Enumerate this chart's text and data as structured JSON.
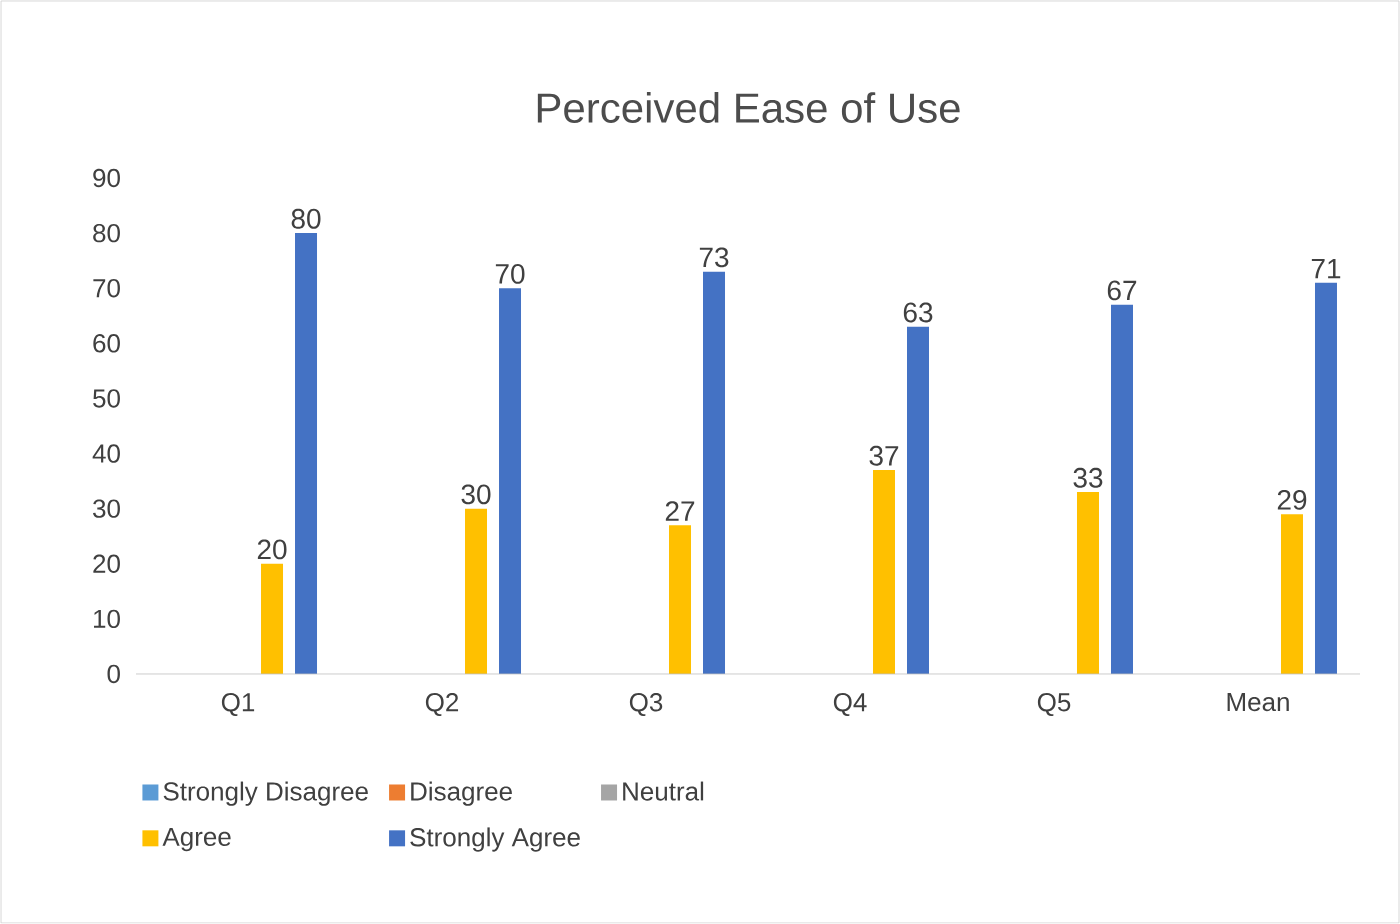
{
  "chart_data": {
    "type": "bar",
    "title": "Perceived Ease of Use",
    "categories": [
      "Q1",
      "Q2",
      "Q3",
      "Q4",
      "Q5",
      "Mean"
    ],
    "series": [
      {
        "name": "Strongly Disagree",
        "color": "#5b9bd5",
        "values": [
          0,
          0,
          0,
          0,
          0,
          0
        ]
      },
      {
        "name": "Disagree",
        "color": "#ed7d31",
        "values": [
          0,
          0,
          0,
          0,
          0,
          0
        ]
      },
      {
        "name": "Neutral",
        "color": "#a5a5a5",
        "values": [
          0,
          0,
          0,
          0,
          0,
          0
        ]
      },
      {
        "name": "Agree",
        "color": "#ffc000",
        "values": [
          20,
          30,
          27,
          37,
          33,
          29
        ],
        "value_labels": [
          "20",
          "30",
          "27",
          "37",
          "33",
          "29"
        ]
      },
      {
        "name": "Strongly Agree",
        "color": "#4472c4",
        "values": [
          80,
          70,
          73,
          63,
          67,
          71
        ],
        "value_labels": [
          "80",
          "70",
          "73",
          "63",
          "67",
          "71"
        ]
      }
    ],
    "ylim": [
      0,
      90
    ],
    "yticks": [
      0,
      10,
      20,
      30,
      40,
      50,
      60,
      70,
      80,
      90
    ],
    "grid": false,
    "legend": "bottom"
  }
}
